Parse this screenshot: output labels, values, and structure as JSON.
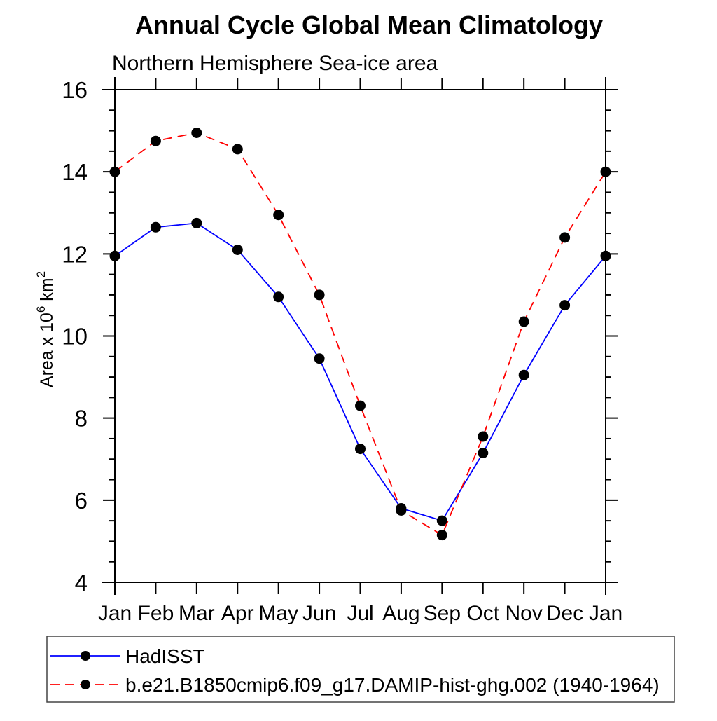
{
  "title": "Annual Cycle Global Mean Climatology",
  "subtitle": "Northern Hemisphere Sea-ice area",
  "ylabel": {
    "main": "Area x 10",
    "sup1": "6",
    "mid": " km",
    "sup2": "2"
  },
  "colors": {
    "hadisst_line": "#0000ff",
    "model_line": "#ff0000",
    "marker": "#000000",
    "axis": "#000000",
    "background": "#ffffff"
  },
  "chart_data": {
    "type": "line",
    "title": "Annual Cycle Global Mean Climatology",
    "subtitle": "Northern Hemisphere Sea-ice area",
    "ylabel": "Area x 10^6 km^2",
    "categories": [
      "Jan",
      "Feb",
      "Mar",
      "Apr",
      "May",
      "Jun",
      "Jul",
      "Aug",
      "Sep",
      "Oct",
      "Nov",
      "Dec",
      "Jan"
    ],
    "ylim": [
      4,
      16
    ],
    "ytick_major_step": 2,
    "ytick_minor_step": 0.5,
    "grid": false,
    "legend_position": "bottom-left-box",
    "series": [
      {
        "name": "HadISST",
        "color": "#0000ff",
        "line_style": "solid",
        "marker": "filled-circle",
        "marker_color": "#000000",
        "values": [
          11.95,
          12.65,
          12.75,
          12.1,
          10.95,
          9.45,
          7.25,
          5.8,
          5.5,
          7.15,
          9.05,
          10.75,
          11.95
        ]
      },
      {
        "name": "b.e21.B1850cmip6.f09_g17.DAMIP-hist-ghg.002 (1940-1964)",
        "color": "#ff0000",
        "line_style": "dashed",
        "marker": "filled-circle",
        "marker_color": "#000000",
        "values": [
          14.0,
          14.75,
          14.95,
          14.55,
          12.95,
          11.0,
          8.3,
          5.75,
          5.15,
          7.55,
          10.35,
          12.4,
          14.0
        ]
      }
    ]
  }
}
